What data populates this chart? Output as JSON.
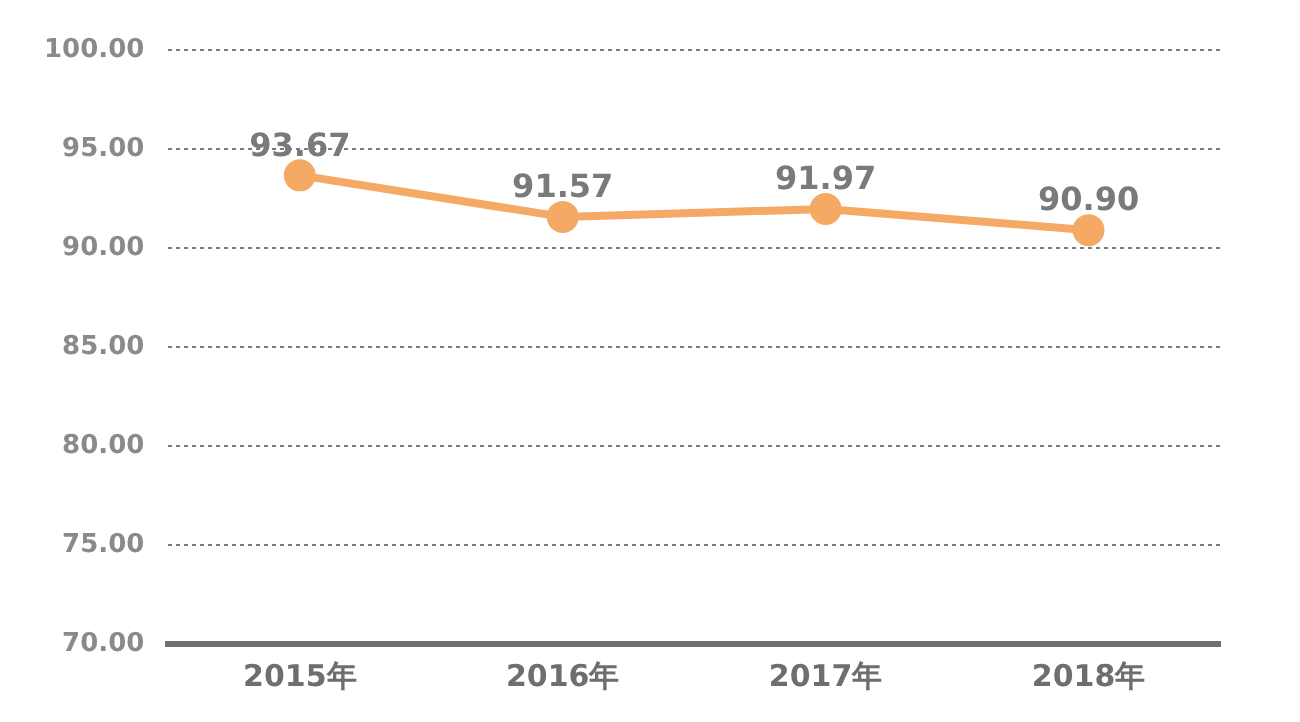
{
  "chart_data": {
    "type": "line",
    "categories": [
      "2015年",
      "2016年",
      "2017年",
      "2018年"
    ],
    "series": [
      {
        "color": "#f4a964",
        "values": [
          93.67,
          91.57,
          91.97,
          90.9
        ],
        "value_labels": [
          "93.67",
          "91.57",
          "91.97",
          "90.90"
        ]
      }
    ],
    "ylim": [
      70,
      100
    ],
    "yticks": [
      {
        "value": 70,
        "label": "70.00"
      },
      {
        "value": 75,
        "label": "75.00"
      },
      {
        "value": 80,
        "label": "80.00"
      },
      {
        "value": 85,
        "label": "85.00"
      },
      {
        "value": 90,
        "label": "90.00"
      },
      {
        "value": 95,
        "label": "95.00"
      },
      {
        "value": 100,
        "label": "100.00"
      }
    ],
    "grid": "y",
    "line_style": "solid",
    "marker": "circle",
    "legend": false
  }
}
